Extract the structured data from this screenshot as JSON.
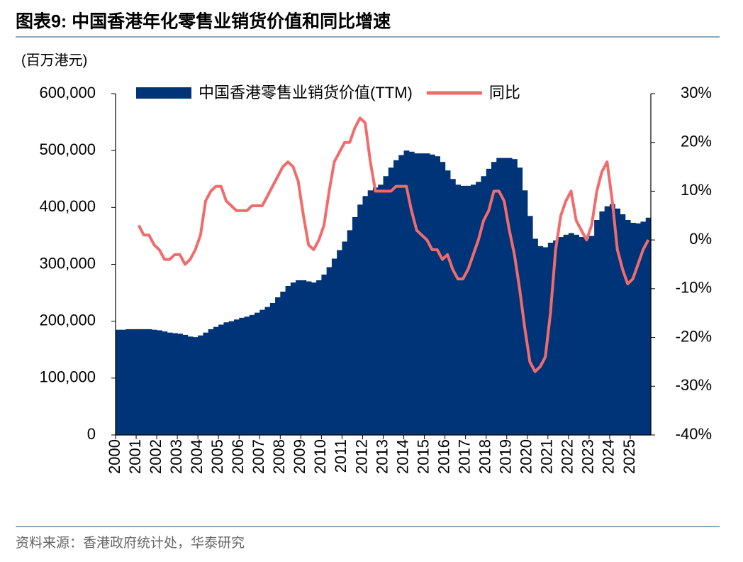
{
  "chart_data": {
    "type": "combo",
    "title": "图表9:  中国香港年化零售业销货价值和同比增速",
    "y_axis_label": "(百万港元)",
    "source": "资料来源：香港政府统计处，华泰研究",
    "categories": [
      "2000",
      null,
      null,
      null,
      "2001",
      null,
      null,
      null,
      "2002",
      null,
      null,
      null,
      "2003",
      null,
      null,
      null,
      "2004",
      null,
      null,
      null,
      "2005",
      null,
      null,
      null,
      "2006",
      null,
      null,
      null,
      "2007",
      null,
      null,
      null,
      "2008",
      null,
      null,
      null,
      "2009",
      null,
      null,
      null,
      "2010",
      null,
      null,
      null,
      "2011",
      null,
      null,
      null,
      "2012",
      null,
      null,
      null,
      "2013",
      null,
      null,
      null,
      "2014",
      null,
      null,
      null,
      "2015",
      null,
      null,
      null,
      "2016",
      null,
      null,
      null,
      "2017",
      null,
      null,
      null,
      "2018",
      null,
      null,
      null,
      "2019",
      null,
      null,
      null,
      "2020",
      null,
      null,
      null,
      "2021",
      null,
      null,
      null,
      "2022",
      null,
      null,
      null,
      "2023",
      null,
      null,
      null,
      "2024",
      null,
      null,
      null,
      "2025",
      null,
      null,
      null
    ],
    "series": [
      {
        "name": "中国香港零售业销货价值(TTM)",
        "type": "area",
        "color": "#003478",
        "values": [
          185000,
          185000,
          186000,
          186000,
          186000,
          186000,
          186000,
          185000,
          184000,
          182000,
          180000,
          179000,
          178000,
          176000,
          173000,
          172000,
          175000,
          180000,
          186000,
          190000,
          194000,
          198000,
          200000,
          203000,
          206000,
          208000,
          211000,
          215000,
          220000,
          225000,
          232000,
          242000,
          252000,
          262000,
          268000,
          272000,
          272000,
          270000,
          268000,
          272000,
          282000,
          295000,
          310000,
          325000,
          340000,
          360000,
          383000,
          405000,
          420000,
          430000,
          435000,
          440000,
          455000,
          470000,
          483000,
          492000,
          500000,
          498000,
          495000,
          495000,
          495000,
          493000,
          490000,
          480000,
          465000,
          450000,
          440000,
          438000,
          438000,
          440000,
          445000,
          455000,
          468000,
          480000,
          487000,
          487000,
          487000,
          485000,
          470000,
          430000,
          385000,
          345000,
          332000,
          330000,
          338000,
          342000,
          348000,
          352000,
          355000,
          352000,
          348000,
          345000,
          350000,
          378000,
          393000,
          402000,
          406000,
          398000,
          388000,
          378000,
          373000,
          372000,
          375000,
          382000
        ]
      },
      {
        "name": "同比",
        "type": "line",
        "axis": "y2",
        "color": "#f26b6b",
        "values": [
          null,
          null,
          null,
          null,
          3,
          1,
          1,
          -1,
          -2,
          -4,
          -4,
          -3,
          -3,
          -5,
          -4,
          -2,
          1,
          8,
          10,
          11,
          11,
          8,
          7,
          6,
          6,
          6,
          7,
          7,
          7,
          9,
          11,
          13,
          15,
          16,
          15,
          12,
          5,
          -1,
          -2,
          0,
          3,
          10,
          16,
          18,
          20,
          20,
          23,
          25,
          24,
          16,
          10,
          10,
          10,
          10,
          11,
          11,
          11,
          6,
          2,
          1,
          0,
          -2,
          -2,
          -4,
          -3,
          -6,
          -8,
          -8,
          -6,
          -3,
          0,
          4,
          6,
          10,
          10,
          8,
          2,
          -3,
          -10,
          -18,
          -25,
          -27,
          -26,
          -24,
          -15,
          -2,
          5,
          8,
          10,
          4,
          2,
          0,
          3,
          10,
          14,
          16,
          8,
          -2,
          -6,
          -9,
          -8,
          -5,
          -2,
          0
        ]
      }
    ],
    "ylim": [
      0,
      600000
    ],
    "yticks": [
      0,
      {
        "value": 100000,
        "label": "100,000"
      },
      {
        "value": 200000,
        "label": "200,000"
      },
      {
        "value": 300000,
        "label": "300,000"
      },
      {
        "value": 400000,
        "label": "400,000"
      },
      {
        "value": 500000,
        "label": "500,000"
      },
      {
        "value": 600000,
        "label": "600,000"
      }
    ],
    "y2lim": [
      -40,
      30
    ],
    "y2ticks": [
      {
        "value": -40,
        "label": "-40%"
      },
      {
        "value": -30,
        "label": "-30%"
      },
      {
        "value": -20,
        "label": "-20%"
      },
      {
        "value": -10,
        "label": "-10%"
      },
      {
        "value": 0,
        "label": "0%"
      },
      {
        "value": 10,
        "label": "10%"
      },
      {
        "value": 20,
        "label": "20%"
      },
      {
        "value": 30,
        "label": "30%"
      }
    ],
    "legend": "top"
  }
}
